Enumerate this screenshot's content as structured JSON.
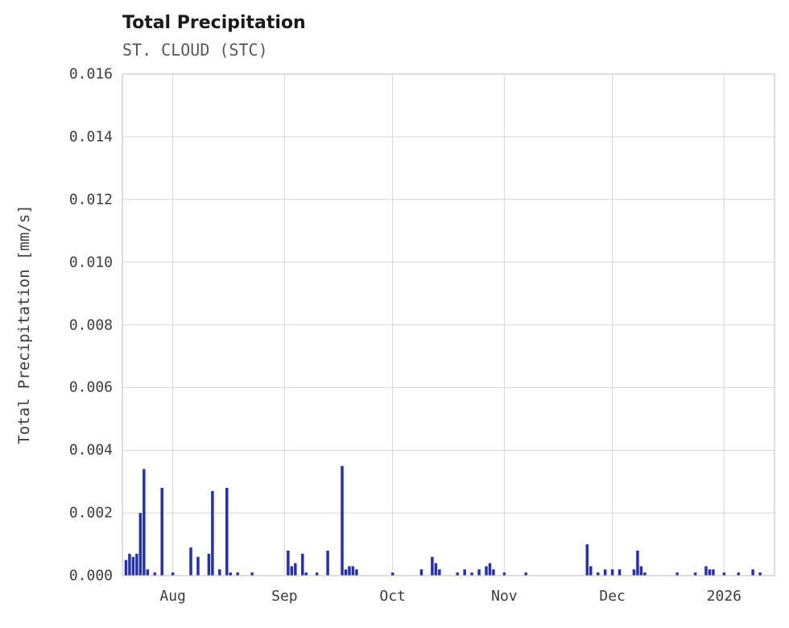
{
  "chart_data": {
    "type": "bar",
    "title": "Total Precipitation",
    "subtitle": "ST. CLOUD (STC)",
    "xlabel": "",
    "ylabel": "Total Precipitation [mm/s]",
    "ylim": [
      0,
      0.016
    ],
    "grid": true,
    "legend": "none",
    "background": "#ffffff",
    "colors": {
      "bar": "#2431a8",
      "grid": "#d6d6d6",
      "border": "#c9c9c9",
      "title": "#1a1a1a",
      "subtitle": "#585858",
      "tick": "#3c3c3c"
    },
    "x_range": [
      "2025-07-18",
      "2026-01-15"
    ],
    "xticks": [
      {
        "date": "2025-08-01",
        "label": "Aug"
      },
      {
        "date": "2025-09-01",
        "label": "Sep"
      },
      {
        "date": "2025-10-01",
        "label": "Oct"
      },
      {
        "date": "2025-11-01",
        "label": "Nov"
      },
      {
        "date": "2025-12-01",
        "label": "Dec"
      },
      {
        "date": "2026-01-01",
        "label": "2026"
      }
    ],
    "yticks": [
      {
        "value": 0.0,
        "label": "0.000"
      },
      {
        "value": 0.002,
        "label": "0.002"
      },
      {
        "value": 0.004,
        "label": "0.004"
      },
      {
        "value": 0.006,
        "label": "0.006"
      },
      {
        "value": 0.008,
        "label": "0.008"
      },
      {
        "value": 0.01,
        "label": "0.010"
      },
      {
        "value": 0.012,
        "label": "0.012"
      },
      {
        "value": 0.014,
        "label": "0.014"
      },
      {
        "value": 0.016,
        "label": "0.016"
      }
    ],
    "series": [
      {
        "name": "Total Precipitation",
        "color": "#2431a8",
        "points": [
          {
            "date": "2025-07-19",
            "value": 0.0005
          },
          {
            "date": "2025-07-20",
            "value": 0.0007
          },
          {
            "date": "2025-07-21",
            "value": 0.0006
          },
          {
            "date": "2025-07-22",
            "value": 0.0007
          },
          {
            "date": "2025-07-23",
            "value": 0.002
          },
          {
            "date": "2025-07-24",
            "value": 0.0034
          },
          {
            "date": "2025-07-25",
            "value": 0.0002
          },
          {
            "date": "2025-07-27",
            "value": 0.0001
          },
          {
            "date": "2025-07-29",
            "value": 0.0028
          },
          {
            "date": "2025-08-01",
            "value": 0.0001
          },
          {
            "date": "2025-08-06",
            "value": 0.0009
          },
          {
            "date": "2025-08-08",
            "value": 0.0006
          },
          {
            "date": "2025-08-11",
            "value": 0.0007
          },
          {
            "date": "2025-08-12",
            "value": 0.0027
          },
          {
            "date": "2025-08-14",
            "value": 0.0002
          },
          {
            "date": "2025-08-16",
            "value": 0.0028
          },
          {
            "date": "2025-08-17",
            "value": 0.0001
          },
          {
            "date": "2025-08-19",
            "value": 0.0001
          },
          {
            "date": "2025-08-23",
            "value": 0.0001
          },
          {
            "date": "2025-09-02",
            "value": 0.0008
          },
          {
            "date": "2025-09-03",
            "value": 0.0003
          },
          {
            "date": "2025-09-04",
            "value": 0.0004
          },
          {
            "date": "2025-09-06",
            "value": 0.0007
          },
          {
            "date": "2025-09-07",
            "value": 0.0001
          },
          {
            "date": "2025-09-10",
            "value": 0.0001
          },
          {
            "date": "2025-09-13",
            "value": 0.0008
          },
          {
            "date": "2025-09-17",
            "value": 0.0035
          },
          {
            "date": "2025-09-18",
            "value": 0.0002
          },
          {
            "date": "2025-09-19",
            "value": 0.0003
          },
          {
            "date": "2025-09-20",
            "value": 0.0003
          },
          {
            "date": "2025-09-21",
            "value": 0.0002
          },
          {
            "date": "2025-10-01",
            "value": 0.0001
          },
          {
            "date": "2025-10-09",
            "value": 0.0002
          },
          {
            "date": "2025-10-12",
            "value": 0.0006
          },
          {
            "date": "2025-10-13",
            "value": 0.0004
          },
          {
            "date": "2025-10-14",
            "value": 0.0002
          },
          {
            "date": "2025-10-19",
            "value": 0.0001
          },
          {
            "date": "2025-10-21",
            "value": 0.0002
          },
          {
            "date": "2025-10-23",
            "value": 0.0001
          },
          {
            "date": "2025-10-25",
            "value": 0.0002
          },
          {
            "date": "2025-10-27",
            "value": 0.0003
          },
          {
            "date": "2025-10-28",
            "value": 0.0004
          },
          {
            "date": "2025-10-29",
            "value": 0.0002
          },
          {
            "date": "2025-11-01",
            "value": 0.0001
          },
          {
            "date": "2025-11-07",
            "value": 0.0001
          },
          {
            "date": "2025-11-24",
            "value": 0.001
          },
          {
            "date": "2025-11-25",
            "value": 0.0003
          },
          {
            "date": "2025-11-27",
            "value": 0.0001
          },
          {
            "date": "2025-11-29",
            "value": 0.0002
          },
          {
            "date": "2025-12-01",
            "value": 0.0002
          },
          {
            "date": "2025-12-03",
            "value": 0.0002
          },
          {
            "date": "2025-12-07",
            "value": 0.0002
          },
          {
            "date": "2025-12-08",
            "value": 0.0008
          },
          {
            "date": "2025-12-09",
            "value": 0.0003
          },
          {
            "date": "2025-12-10",
            "value": 0.0001
          },
          {
            "date": "2025-12-19",
            "value": 0.0001
          },
          {
            "date": "2025-12-24",
            "value": 0.0001
          },
          {
            "date": "2025-12-27",
            "value": 0.0003
          },
          {
            "date": "2025-12-28",
            "value": 0.0002
          },
          {
            "date": "2025-12-29",
            "value": 0.0002
          },
          {
            "date": "2026-01-01",
            "value": 0.0001
          },
          {
            "date": "2026-01-05",
            "value": 0.0001
          },
          {
            "date": "2026-01-09",
            "value": 0.0002
          },
          {
            "date": "2026-01-11",
            "value": 0.0001
          }
        ]
      }
    ]
  }
}
